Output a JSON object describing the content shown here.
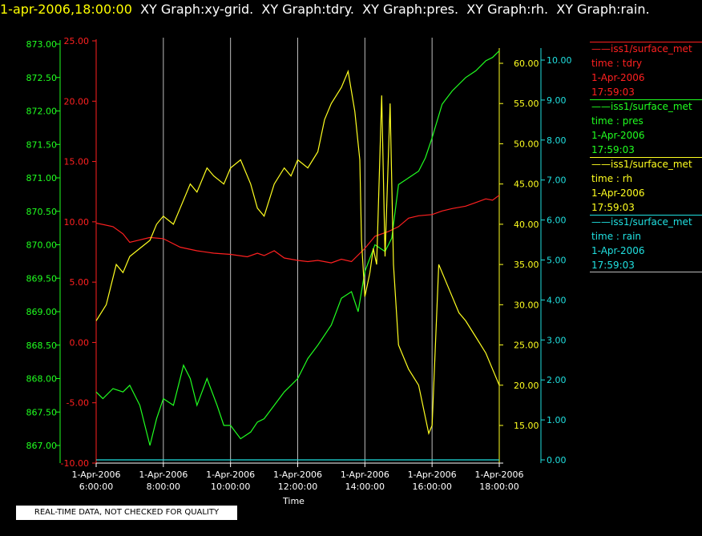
{
  "header": {
    "timestamp": "1-apr-2006,18:00:00",
    "graph_titles": [
      "XY Graph:xy-grid.",
      "XY Graph:tdry.",
      "XY Graph:pres.",
      "XY Graph:rh.",
      "XY Graph:rain."
    ]
  },
  "footer": {
    "quality_note": "REAL-TIME DATA, NOT CHECKED FOR QUALITY"
  },
  "colors": {
    "tdry": "#ff2020",
    "pres": "#20ff20",
    "rh": "#ffff20",
    "rain": "#20e0e0",
    "grid": "#ffffff",
    "background": "#000000"
  },
  "legend": [
    {
      "key": "tdry",
      "lines": [
        "iss1/surface_met",
        "time : tdry",
        "1-Apr-2006",
        "17:59:03"
      ]
    },
    {
      "key": "pres",
      "lines": [
        "iss1/surface_met",
        "time : pres",
        "1-Apr-2006",
        "17:59:03"
      ]
    },
    {
      "key": "rh",
      "lines": [
        "iss1/surface_met",
        "time : rh",
        "1-Apr-2006",
        "17:59:03"
      ]
    },
    {
      "key": "rain",
      "lines": [
        "iss1/surface_met",
        "time : rain",
        "1-Apr-2006",
        "17:59:03"
      ]
    }
  ],
  "chart_data": {
    "type": "line",
    "xlabel": "Time",
    "x_ticks": [
      {
        "date": "1-Apr-2006",
        "time": "6:00:00",
        "hour": 6
      },
      {
        "date": "1-Apr-2006",
        "time": "8:00:00",
        "hour": 8
      },
      {
        "date": "1-Apr-2006",
        "time": "10:00:00",
        "hour": 10
      },
      {
        "date": "1-Apr-2006",
        "time": "12:00:00",
        "hour": 12
      },
      {
        "date": "1-Apr-2006",
        "time": "14:00:00",
        "hour": 14
      },
      {
        "date": "1-Apr-2006",
        "time": "16:00:00",
        "hour": 16
      },
      {
        "date": "1-Apr-2006",
        "time": "18:00:00",
        "hour": 18
      }
    ],
    "xlim": [
      6,
      18
    ],
    "grid": true,
    "axes": {
      "pres": {
        "ylim": [
          867.0,
          873.0
        ],
        "ticks": [
          "867.00",
          "867.50",
          "868.00",
          "868.50",
          "869.00",
          "869.50",
          "870.00",
          "870.50",
          "871.00",
          "871.50",
          "872.00",
          "872.50",
          "873.00"
        ]
      },
      "tdry": {
        "ylim": [
          -10.0,
          25.0
        ],
        "ticks": [
          "-10.00",
          "-5.00",
          "0.00",
          "5.00",
          "10.00",
          "15.00",
          "20.00",
          "25.00"
        ]
      },
      "rh": {
        "ylim": [
          10.0,
          62.0
        ],
        "ticks": [
          "15.00",
          "20.00",
          "25.00",
          "30.00",
          "35.00",
          "40.00",
          "45.00",
          "50.00",
          "55.00",
          "60.00"
        ]
      },
      "rain": {
        "ylim": [
          0.0,
          10.0
        ],
        "ticks": [
          "0.00",
          "1.00",
          "2.00",
          "3.00",
          "4.00",
          "5.00",
          "6.00",
          "7.00",
          "8.00",
          "9.00",
          "10.00"
        ]
      }
    },
    "series": [
      {
        "key": "tdry",
        "x": [
          6.0,
          6.5,
          6.8,
          7.0,
          7.3,
          7.6,
          8.0,
          8.5,
          9.0,
          9.5,
          10.0,
          10.5,
          10.8,
          11.0,
          11.3,
          11.6,
          12.0,
          12.3,
          12.6,
          13.0,
          13.3,
          13.6,
          14.0,
          14.3,
          14.7,
          15.0,
          15.3,
          15.6,
          16.0,
          16.3,
          16.6,
          17.0,
          17.3,
          17.6,
          17.8,
          18.0
        ],
        "y": [
          9.9,
          9.6,
          9.0,
          8.3,
          8.5,
          8.7,
          8.6,
          7.9,
          7.6,
          7.4,
          7.3,
          7.1,
          7.4,
          7.2,
          7.6,
          7.0,
          6.8,
          6.7,
          6.8,
          6.6,
          6.9,
          6.7,
          7.8,
          8.8,
          9.2,
          9.6,
          10.3,
          10.5,
          10.6,
          10.9,
          11.1,
          11.3,
          11.6,
          11.9,
          11.8,
          12.2
        ]
      },
      {
        "key": "pres",
        "x": [
          6.0,
          6.2,
          6.5,
          6.8,
          7.0,
          7.3,
          7.6,
          7.8,
          8.0,
          8.3,
          8.6,
          8.8,
          9.0,
          9.3,
          9.6,
          9.8,
          10.0,
          10.3,
          10.6,
          10.8,
          11.0,
          11.3,
          11.6,
          11.8,
          12.0,
          12.3,
          12.6,
          13.0,
          13.3,
          13.6,
          13.8,
          14.0,
          14.3,
          14.6,
          14.8,
          15.0,
          15.3,
          15.6,
          15.8,
          16.0,
          16.3,
          16.6,
          17.0,
          17.3,
          17.6,
          17.8,
          18.0
        ],
        "y": [
          867.8,
          867.7,
          867.85,
          867.8,
          867.9,
          867.6,
          867.0,
          867.4,
          867.7,
          867.6,
          868.2,
          868.0,
          867.6,
          868.0,
          867.6,
          867.3,
          867.3,
          867.1,
          867.2,
          867.35,
          867.4,
          867.6,
          867.8,
          867.9,
          868.0,
          868.3,
          868.5,
          868.8,
          869.2,
          869.3,
          869.0,
          869.6,
          870.0,
          869.9,
          870.1,
          870.9,
          871.0,
          871.1,
          871.3,
          871.6,
          872.1,
          872.3,
          872.5,
          872.6,
          872.75,
          872.8,
          872.9
        ]
      },
      {
        "key": "rh",
        "x": [
          6.0,
          6.3,
          6.6,
          6.8,
          7.0,
          7.3,
          7.6,
          7.8,
          8.0,
          8.3,
          8.5,
          8.8,
          9.0,
          9.3,
          9.5,
          9.8,
          10.0,
          10.3,
          10.6,
          10.8,
          11.0,
          11.3,
          11.6,
          11.8,
          12.0,
          12.3,
          12.6,
          12.8,
          13.0,
          13.3,
          13.5,
          13.7,
          13.85,
          13.9,
          14.0,
          14.15,
          14.25,
          14.35,
          14.5,
          14.6,
          14.75,
          14.85,
          15.0,
          15.3,
          15.6,
          15.8,
          15.9,
          16.0,
          16.2,
          16.4,
          16.6,
          16.8,
          17.0,
          17.3,
          17.6,
          17.8,
          18.0
        ],
        "y": [
          28,
          30,
          35,
          34,
          36,
          37,
          38,
          40,
          41,
          40,
          42,
          45,
          44,
          47,
          46,
          45,
          47,
          48,
          45,
          42,
          41,
          45,
          47,
          46,
          48,
          47,
          49,
          53,
          55,
          57,
          59,
          54,
          48,
          38,
          31,
          34,
          37,
          35,
          56,
          36,
          55,
          35,
          25,
          22,
          20,
          16,
          14,
          15,
          35,
          33,
          31,
          29,
          28,
          26,
          24,
          22,
          20
        ]
      },
      {
        "key": "rain",
        "x": [
          6.0,
          18.0
        ],
        "y": [
          0.0,
          0.0
        ]
      }
    ]
  }
}
